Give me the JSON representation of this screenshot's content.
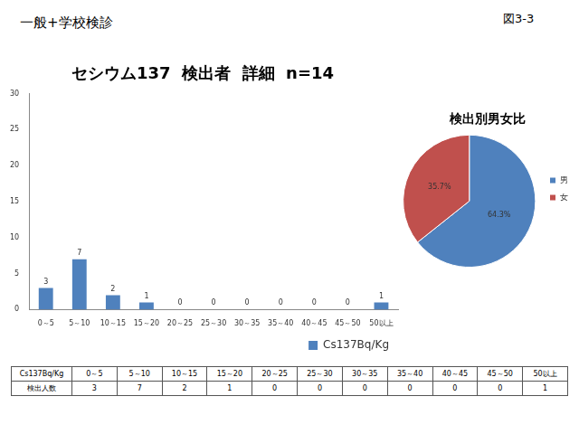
{
  "header": {
    "left": "一般+学校検診",
    "right": "図3-3"
  },
  "chart_data": [
    {
      "type": "bar",
      "title": "セシウム137  検出者  詳細  n=14",
      "categories": [
        "0～5",
        "5～10",
        "10～15",
        "15～20",
        "20～25",
        "25～30",
        "30～35",
        "35～40",
        "40～45",
        "45～50",
        "50以上"
      ],
      "series": [
        {
          "name": "Cs137Bq/Kg",
          "color": "#4f81bd",
          "values": [
            3,
            7,
            2,
            1,
            0,
            0,
            0,
            0,
            0,
            0,
            1
          ]
        }
      ],
      "ylim": [
        0,
        30
      ],
      "yticks": [
        0,
        5,
        10,
        15,
        20,
        25,
        30
      ],
      "grid": false,
      "legend": "bottom",
      "data_labels": true
    },
    {
      "type": "pie",
      "title": "検出別男女比",
      "categories": [
        "男",
        "女"
      ],
      "values": [
        64.3,
        35.7
      ],
      "value_labels": [
        "64.3%",
        "35.7%"
      ],
      "colors": [
        "#4f81bd",
        "#c0504d"
      ],
      "legend": "right",
      "data_labels": true
    }
  ],
  "table": {
    "rows": [
      [
        "Cs137Bq/Kg",
        "0～5",
        "5～10",
        "10～15",
        "15～20",
        "20～25",
        "25～30",
        "30～35",
        "35～40",
        "40～45",
        "45～50",
        "50以上"
      ],
      [
        "検出人数",
        3,
        7,
        2,
        1,
        0,
        0,
        0,
        0,
        0,
        0,
        1
      ]
    ]
  }
}
